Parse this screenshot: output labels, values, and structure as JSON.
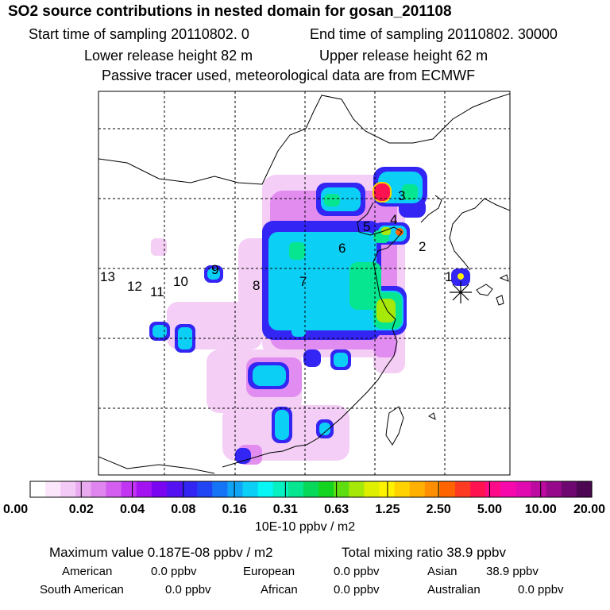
{
  "header": {
    "title": "SO2 source contributions in nested domain for gosan_201108",
    "start_time": "Start time of sampling 20110802.     0",
    "end_time": "End time of sampling 20110802. 30000",
    "lower_release": "Lower release height   82 m",
    "upper_release": "Upper release height   62 m",
    "tracer_note": "Passive tracer used, meteorological data are from ECMWF"
  },
  "map": {
    "receptor_marker": "asterisk-icon",
    "source_labels": [
      "1",
      "2",
      "3",
      "4",
      "5",
      "6",
      "7",
      "8",
      "9",
      "10",
      "11",
      "12",
      "13"
    ]
  },
  "colorbar": {
    "tick_labels": [
      "0.00",
      "0.02",
      "0.04",
      "0.08",
      "0.16",
      "0.31",
      "0.63",
      "1.25",
      "2.50",
      "5.00",
      "10.00",
      "20.00"
    ],
    "unit": "10E-10 ppbv / m2",
    "colors": [
      "#ffffff",
      "#fbe6fb",
      "#f3c9f5",
      "#eaaaf0",
      "#e085f0",
      "#d35ef0",
      "#c034f2",
      "#a413f2",
      "#7a05f0",
      "#5412f2",
      "#3325f3",
      "#1f45f5",
      "#1574f6",
      "#10a4f6",
      "#0ccff6",
      "#06f5f5",
      "#06f0c2",
      "#06e590",
      "#06d85a",
      "#13d520",
      "#5ede10",
      "#a6e808",
      "#def000",
      "#fff200",
      "#ffd200",
      "#ffb000",
      "#ff8e00",
      "#ff6400",
      "#ff3a22",
      "#ff1250",
      "#ff0a88",
      "#f708ac",
      "#e00ab0",
      "#bd0aa0",
      "#95098a",
      "#6e0870",
      "#4c0652"
    ]
  },
  "summary": {
    "max_label": "Maximum value  0.187E-08 ppbv / m2",
    "total_label": "Total mixing ratio       38.9 ppbv",
    "regions": [
      {
        "name": "American",
        "value": "0.0 ppbv"
      },
      {
        "name": "European",
        "value": "0.0 ppbv"
      },
      {
        "name": "Asian",
        "value": "38.9 ppbv"
      },
      {
        "name": "South American",
        "value": "0.0 ppbv"
      },
      {
        "name": "African",
        "value": "0.0 ppbv"
      },
      {
        "name": "Australian",
        "value": "0.0 ppbv"
      }
    ]
  }
}
